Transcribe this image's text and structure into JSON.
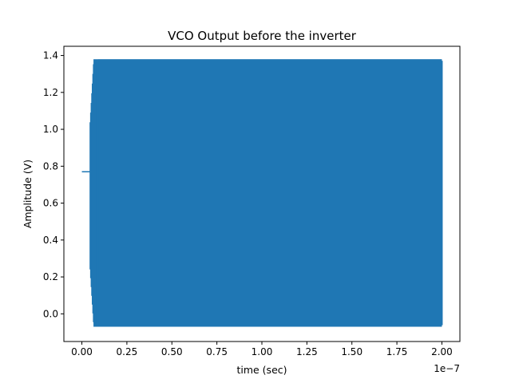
{
  "chart_data": {
    "type": "line",
    "title": "VCO Output before the inverter",
    "xlabel": "time (sec)",
    "ylabel": "Amplitude (V)",
    "x_offset_label": "1e−7",
    "xlim": [
      -1e-08,
      2.1e-07
    ],
    "ylim": [
      -0.15,
      1.45
    ],
    "x_ticks": [
      0.0,
      2.5e-08,
      5e-08,
      7.5e-08,
      1e-07,
      1.25e-07,
      1.5e-07,
      1.75e-07,
      2e-07
    ],
    "x_tick_labels": [
      "0.00",
      "0.25",
      "0.50",
      "0.75",
      "1.00",
      "1.25",
      "1.50",
      "1.75",
      "2.00"
    ],
    "y_ticks": [
      0.0,
      0.2,
      0.4,
      0.6,
      0.8,
      1.0,
      1.2,
      1.4
    ],
    "y_tick_labels": [
      "0.0",
      "0.2",
      "0.4",
      "0.6",
      "0.8",
      "1.0",
      "1.2",
      "1.4"
    ],
    "grid": false,
    "series": [
      {
        "color": "#1f77b4",
        "initial_level": 0.77,
        "initial_x": [
          0.0,
          4.5e-09
        ],
        "oscillation_start": 4.5e-09,
        "oscillation_full_amplitude_at": 9e-09,
        "oscillation_end": 2e-07,
        "max": 1.38,
        "min": -0.07
      }
    ]
  }
}
